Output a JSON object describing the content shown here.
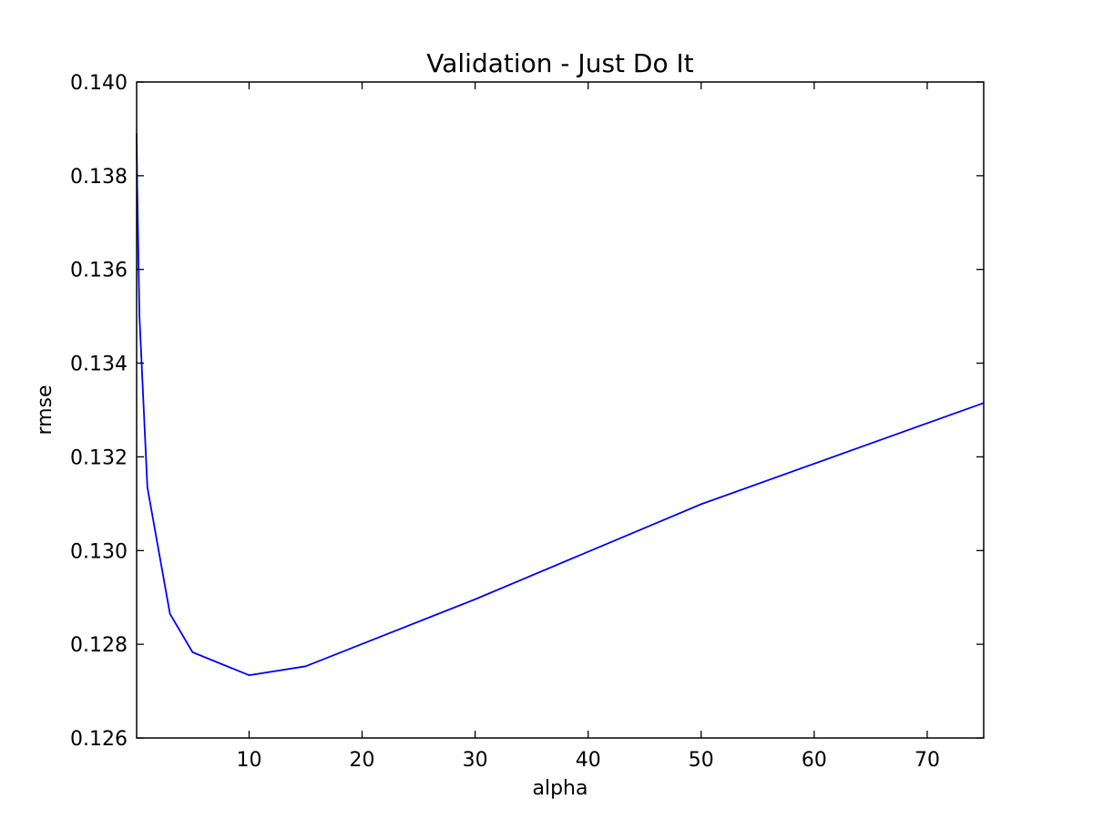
{
  "chart_data": {
    "type": "line",
    "title": "Validation - Just Do It",
    "xlabel": "alpha",
    "ylabel": "rmse",
    "xlim": [
      0.05,
      75
    ],
    "ylim": [
      0.126,
      0.14
    ],
    "x_ticks": [
      10,
      20,
      30,
      40,
      50,
      60,
      70
    ],
    "x_tick_labels": [
      "10",
      "20",
      "30",
      "40",
      "50",
      "60",
      "70"
    ],
    "y_ticks": [
      0.126,
      0.128,
      0.13,
      0.132,
      0.134,
      0.136,
      0.138,
      0.14
    ],
    "y_tick_labels": [
      "0.126",
      "0.128",
      "0.130",
      "0.132",
      "0.134",
      "0.136",
      "0.138",
      "0.140"
    ],
    "grid": false,
    "series": [
      {
        "color": "#0000ff",
        "x": [
          0.05,
          0.1,
          0.3,
          1,
          3,
          5,
          10,
          15,
          30,
          50,
          75
        ],
        "y": [
          0.1389,
          0.1378,
          0.135,
          0.13135,
          0.12865,
          0.12783,
          0.12734,
          0.12753,
          0.12896,
          0.13099,
          0.13315
        ]
      }
    ]
  }
}
